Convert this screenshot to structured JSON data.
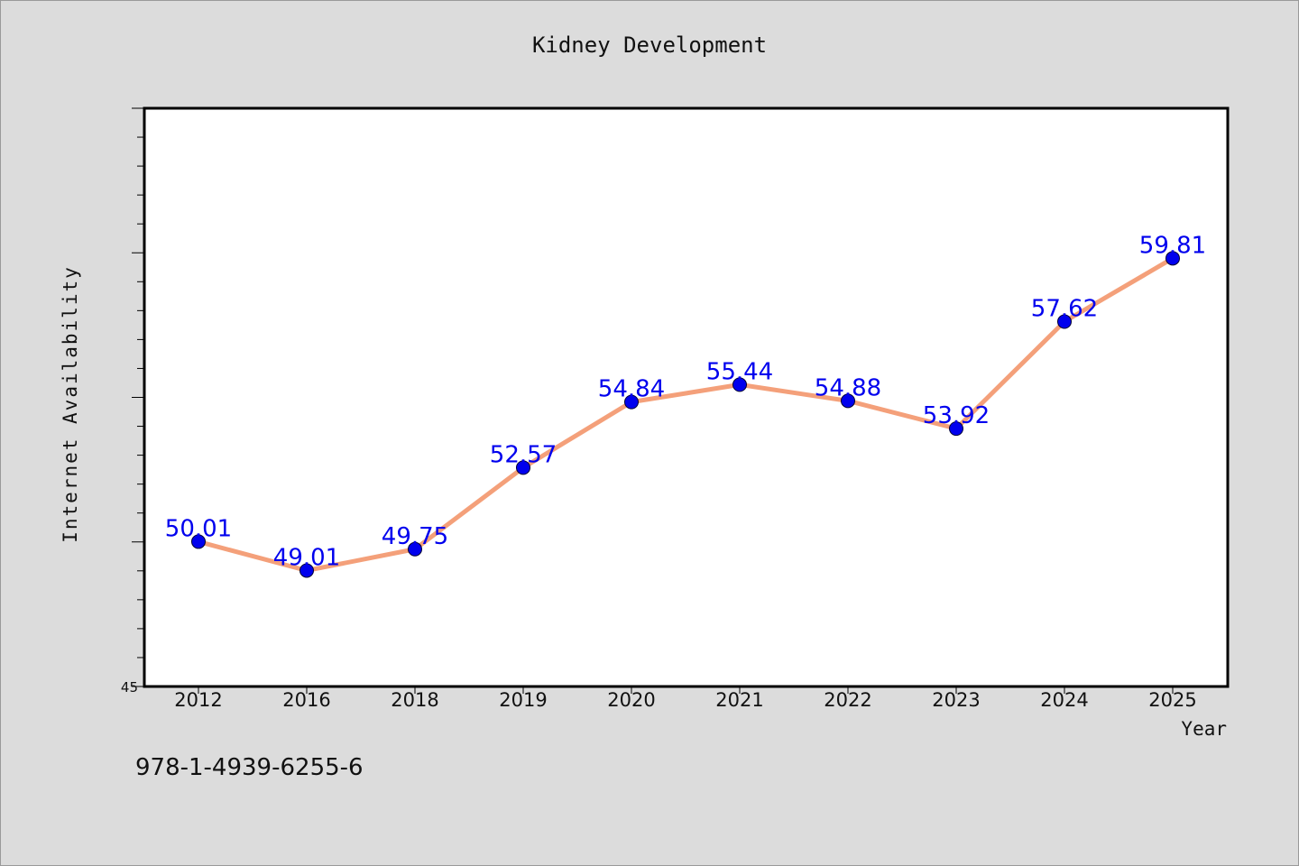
{
  "footer": {
    "isbn": "978-1-4939-6255-6"
  },
  "colors": {
    "background": "#dcdcdc",
    "plot_background": "#ffffff",
    "line": "#f4a07a",
    "marker": "#0000ee",
    "data_label": "#0000ee"
  },
  "chart_data": {
    "type": "line",
    "title": "Kidney Development",
    "xlabel": "Year",
    "ylabel": "Internet Availability",
    "categories": [
      "2012",
      "2016",
      "2018",
      "2019",
      "2020",
      "2021",
      "2022",
      "2023",
      "2024",
      "2025"
    ],
    "series": [
      {
        "values": [
          50.01,
          49.01,
          49.75,
          52.57,
          54.84,
          55.44,
          54.88,
          53.92,
          57.62,
          59.81
        ],
        "labels": [
          "50.01",
          "49.01",
          "49.75",
          "52.57",
          "54.84",
          "55.44",
          "54.88",
          "53.92",
          "57.62",
          "59.81"
        ]
      }
    ],
    "ylim": [
      45,
      65
    ],
    "y_tick_labels": [
      "45"
    ],
    "grid": false,
    "legend": "none"
  }
}
